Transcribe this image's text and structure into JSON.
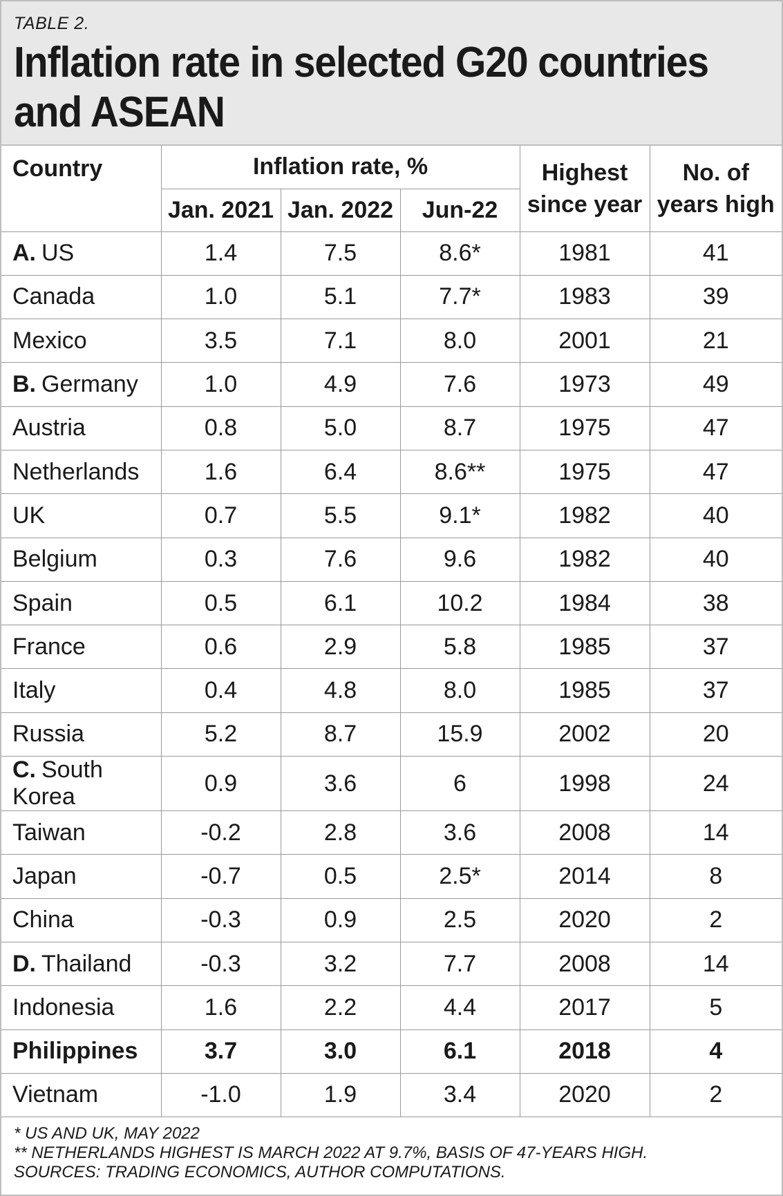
{
  "label": "TABLE 2.",
  "title_line1": "Inflation rate in selected G20 countries",
  "title_line2": "and ASEAN",
  "chart_data": {
    "type": "table",
    "columns": {
      "country": "Country",
      "inflation_group": "Inflation rate, %",
      "jan2021": "Jan. 2021",
      "jan2022": "Jan. 2022",
      "jun22": "Jun-22",
      "highest_line1": "Highest",
      "highest_line2": "since year",
      "years_line1": "No. of",
      "years_line2": "years high"
    },
    "rows": [
      {
        "group": "A.",
        "country": "US",
        "jan2021": "1.4",
        "jan2022": "7.5",
        "jun22": "8.6*",
        "highest": "1981",
        "years": "41"
      },
      {
        "group": "",
        "country": "Canada",
        "jan2021": "1.0",
        "jan2022": "5.1",
        "jun22": "7.7*",
        "highest": "1983",
        "years": "39"
      },
      {
        "group": "",
        "country": "Mexico",
        "jan2021": "3.5",
        "jan2022": "7.1",
        "jun22": "8.0",
        "highest": "2001",
        "years": "21"
      },
      {
        "group": "B.",
        "country": "Germany",
        "jan2021": "1.0",
        "jan2022": "4.9",
        "jun22": "7.6",
        "highest": "1973",
        "years": "49"
      },
      {
        "group": "",
        "country": "Austria",
        "jan2021": "0.8",
        "jan2022": "5.0",
        "jun22": "8.7",
        "highest": "1975",
        "years": "47"
      },
      {
        "group": "",
        "country": "Netherlands",
        "jan2021": "1.6",
        "jan2022": "6.4",
        "jun22": "8.6**",
        "highest": "1975",
        "years": "47"
      },
      {
        "group": "",
        "country": "UK",
        "jan2021": "0.7",
        "jan2022": "5.5",
        "jun22": "9.1*",
        "highest": "1982",
        "years": "40"
      },
      {
        "group": "",
        "country": "Belgium",
        "jan2021": "0.3",
        "jan2022": "7.6",
        "jun22": "9.6",
        "highest": "1982",
        "years": "40"
      },
      {
        "group": "",
        "country": "Spain",
        "jan2021": "0.5",
        "jan2022": "6.1",
        "jun22": "10.2",
        "highest": "1984",
        "years": "38"
      },
      {
        "group": "",
        "country": "France",
        "jan2021": "0.6",
        "jan2022": "2.9",
        "jun22": "5.8",
        "highest": "1985",
        "years": "37"
      },
      {
        "group": "",
        "country": "Italy",
        "jan2021": "0.4",
        "jan2022": "4.8",
        "jun22": "8.0",
        "highest": "1985",
        "years": "37"
      },
      {
        "group": "",
        "country": "Russia",
        "jan2021": "5.2",
        "jan2022": "8.7",
        "jun22": "15.9",
        "highest": "2002",
        "years": "20"
      },
      {
        "group": "C.",
        "country": "South Korea",
        "jan2021": "0.9",
        "jan2022": "3.6",
        "jun22": "6",
        "highest": "1998",
        "years": "24"
      },
      {
        "group": "",
        "country": "Taiwan",
        "jan2021": "-0.2",
        "jan2022": "2.8",
        "jun22": "3.6",
        "highest": "2008",
        "years": "14"
      },
      {
        "group": "",
        "country": "Japan",
        "jan2021": "-0.7",
        "jan2022": "0.5",
        "jun22": "2.5*",
        "highest": "2014",
        "years": "8"
      },
      {
        "group": "",
        "country": "China",
        "jan2021": "-0.3",
        "jan2022": "0.9",
        "jun22": "2.5",
        "highest": "2020",
        "years": "2"
      },
      {
        "group": "D.",
        "country": "Thailand",
        "jan2021": "-0.3",
        "jan2022": "3.2",
        "jun22": "7.7",
        "highest": "2008",
        "years": "14"
      },
      {
        "group": "",
        "country": "Indonesia",
        "jan2021": "1.6",
        "jan2022": "2.2",
        "jun22": "4.4",
        "highest": "2017",
        "years": "5"
      },
      {
        "group": "",
        "country": "Philippines",
        "jan2021": "3.7",
        "jan2022": "3.0",
        "jun22": "6.1",
        "highest": "2018",
        "years": "4",
        "bold": true
      },
      {
        "group": "",
        "country": "Vietnam",
        "jan2021": "-1.0",
        "jan2022": "1.9",
        "jun22": "3.4",
        "highest": "2020",
        "years": "2"
      }
    ]
  },
  "notes": [
    "* US AND UK, MAY 2022",
    "** NETHERLANDS HIGHEST IS MARCH 2022 AT 9.7%, BASIS OF 47-YEARS HIGH.",
    "SOURCES: TRADING ECONOMICS, AUTHOR COMPUTATIONS."
  ],
  "colors": {
    "header_bg": "#e8e8e8",
    "border": "#9a9a9a",
    "text": "#1a1a1a"
  }
}
